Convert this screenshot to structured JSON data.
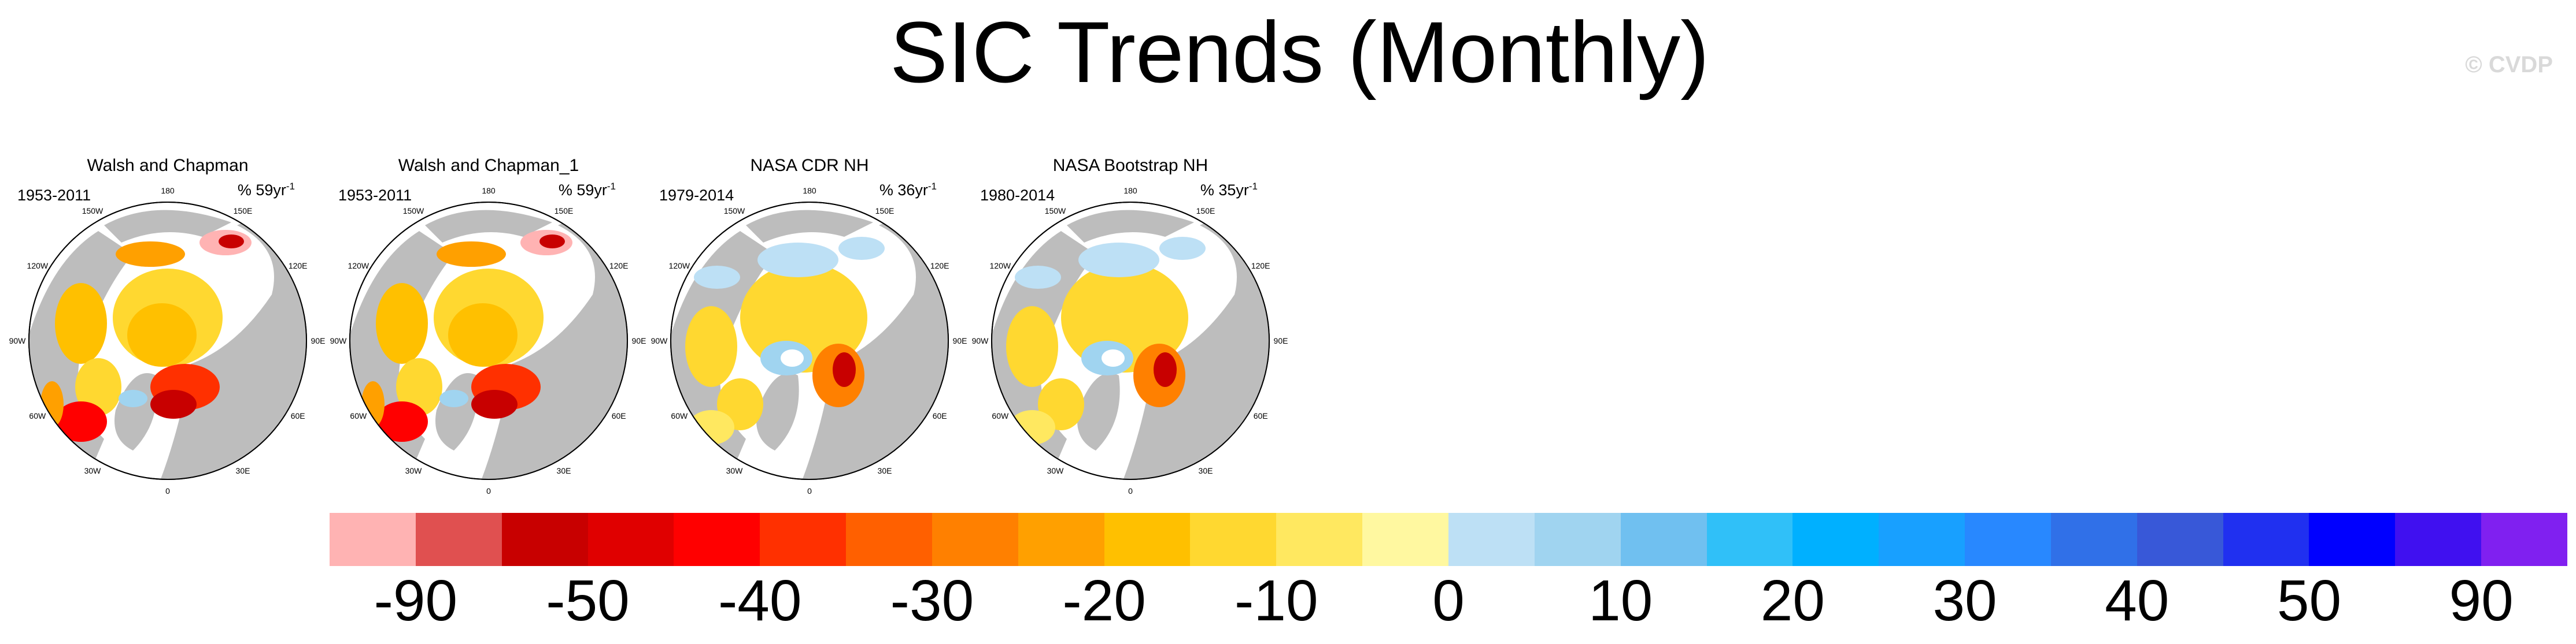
{
  "title": "SIC Trends (Monthly)",
  "credit": "© CVDP",
  "panels": [
    {
      "title": "Walsh and Chapman",
      "years": "1953-2011",
      "units": "% 59yr",
      "units_exp": "-1",
      "style": "wc"
    },
    {
      "title": "Walsh and Chapman_1",
      "years": "1953-2011",
      "units": "% 59yr",
      "units_exp": "-1",
      "style": "wc"
    },
    {
      "title": "NASA CDR NH",
      "years": "1979-2014",
      "units": "% 36yr",
      "units_exp": "-1",
      "style": "nasa"
    },
    {
      "title": "NASA Bootstrap NH",
      "years": "1980-2014",
      "units": "% 35yr",
      "units_exp": "-1",
      "style": "nasa"
    }
  ],
  "longitude_labels": [
    "180",
    "150W",
    "150E",
    "120W",
    "120E",
    "90W",
    "90E",
    "60W",
    "60E",
    "30W",
    "30E",
    "0"
  ],
  "colorbar": {
    "colors": [
      "#ffb3b3",
      "#e05050",
      "#c80000",
      "#e00000",
      "#ff0000",
      "#ff3000",
      "#ff6000",
      "#ff8000",
      "#ffa000",
      "#ffc000",
      "#ffd830",
      "#ffe860",
      "#fff8a0",
      "#bde0f5",
      "#a0d4f0",
      "#70c0f0",
      "#30c0f8",
      "#00b0ff",
      "#18a0ff",
      "#2888ff",
      "#3070e8",
      "#3858d8",
      "#2030f0",
      "#0000ff",
      "#4010f0",
      "#8020f0"
    ],
    "labels": [
      "-90",
      "-50",
      "-40",
      "-30",
      "-20",
      "-10",
      "0",
      "10",
      "20",
      "30",
      "40",
      "50",
      "90"
    ]
  },
  "colors": {
    "land": "#bdbdbd",
    "ocean": "#ffffff"
  }
}
